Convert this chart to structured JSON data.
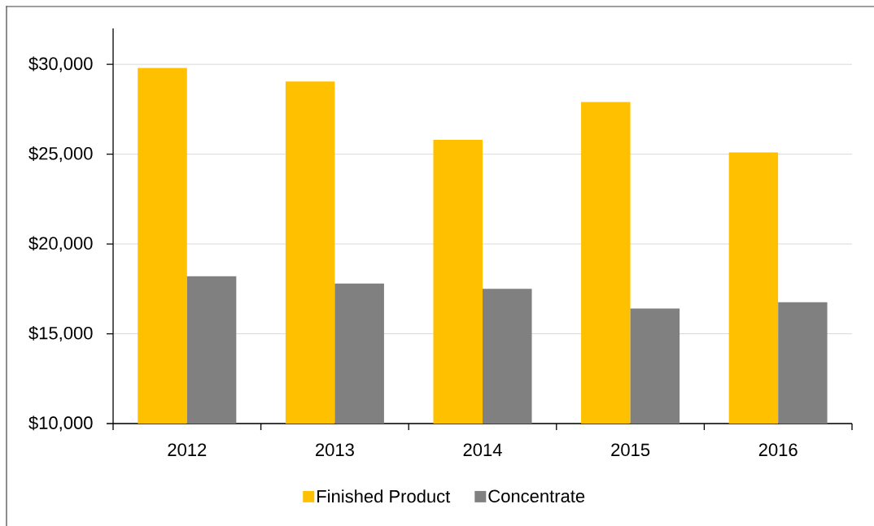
{
  "chart_data": {
    "type": "bar",
    "categories": [
      "2012",
      "2013",
      "2014",
      "2015",
      "2016"
    ],
    "series": [
      {
        "name": "Finished Product",
        "color": "#ffc000",
        "values": [
          29800,
          29050,
          25800,
          27900,
          25100
        ]
      },
      {
        "name": "Concentrate",
        "color": "#808080",
        "values": [
          18200,
          17800,
          17500,
          16400,
          16750
        ]
      }
    ],
    "ylim": [
      10000,
      32000
    ],
    "yticks": [
      {
        "value": 10000,
        "label": "$10,000"
      },
      {
        "value": 15000,
        "label": "$15,000"
      },
      {
        "value": 20000,
        "label": "$20,000"
      },
      {
        "value": 25000,
        "label": "$25,000"
      },
      {
        "value": 30000,
        "label": "$30,000"
      }
    ],
    "grid": "y",
    "legend": "bottom"
  }
}
